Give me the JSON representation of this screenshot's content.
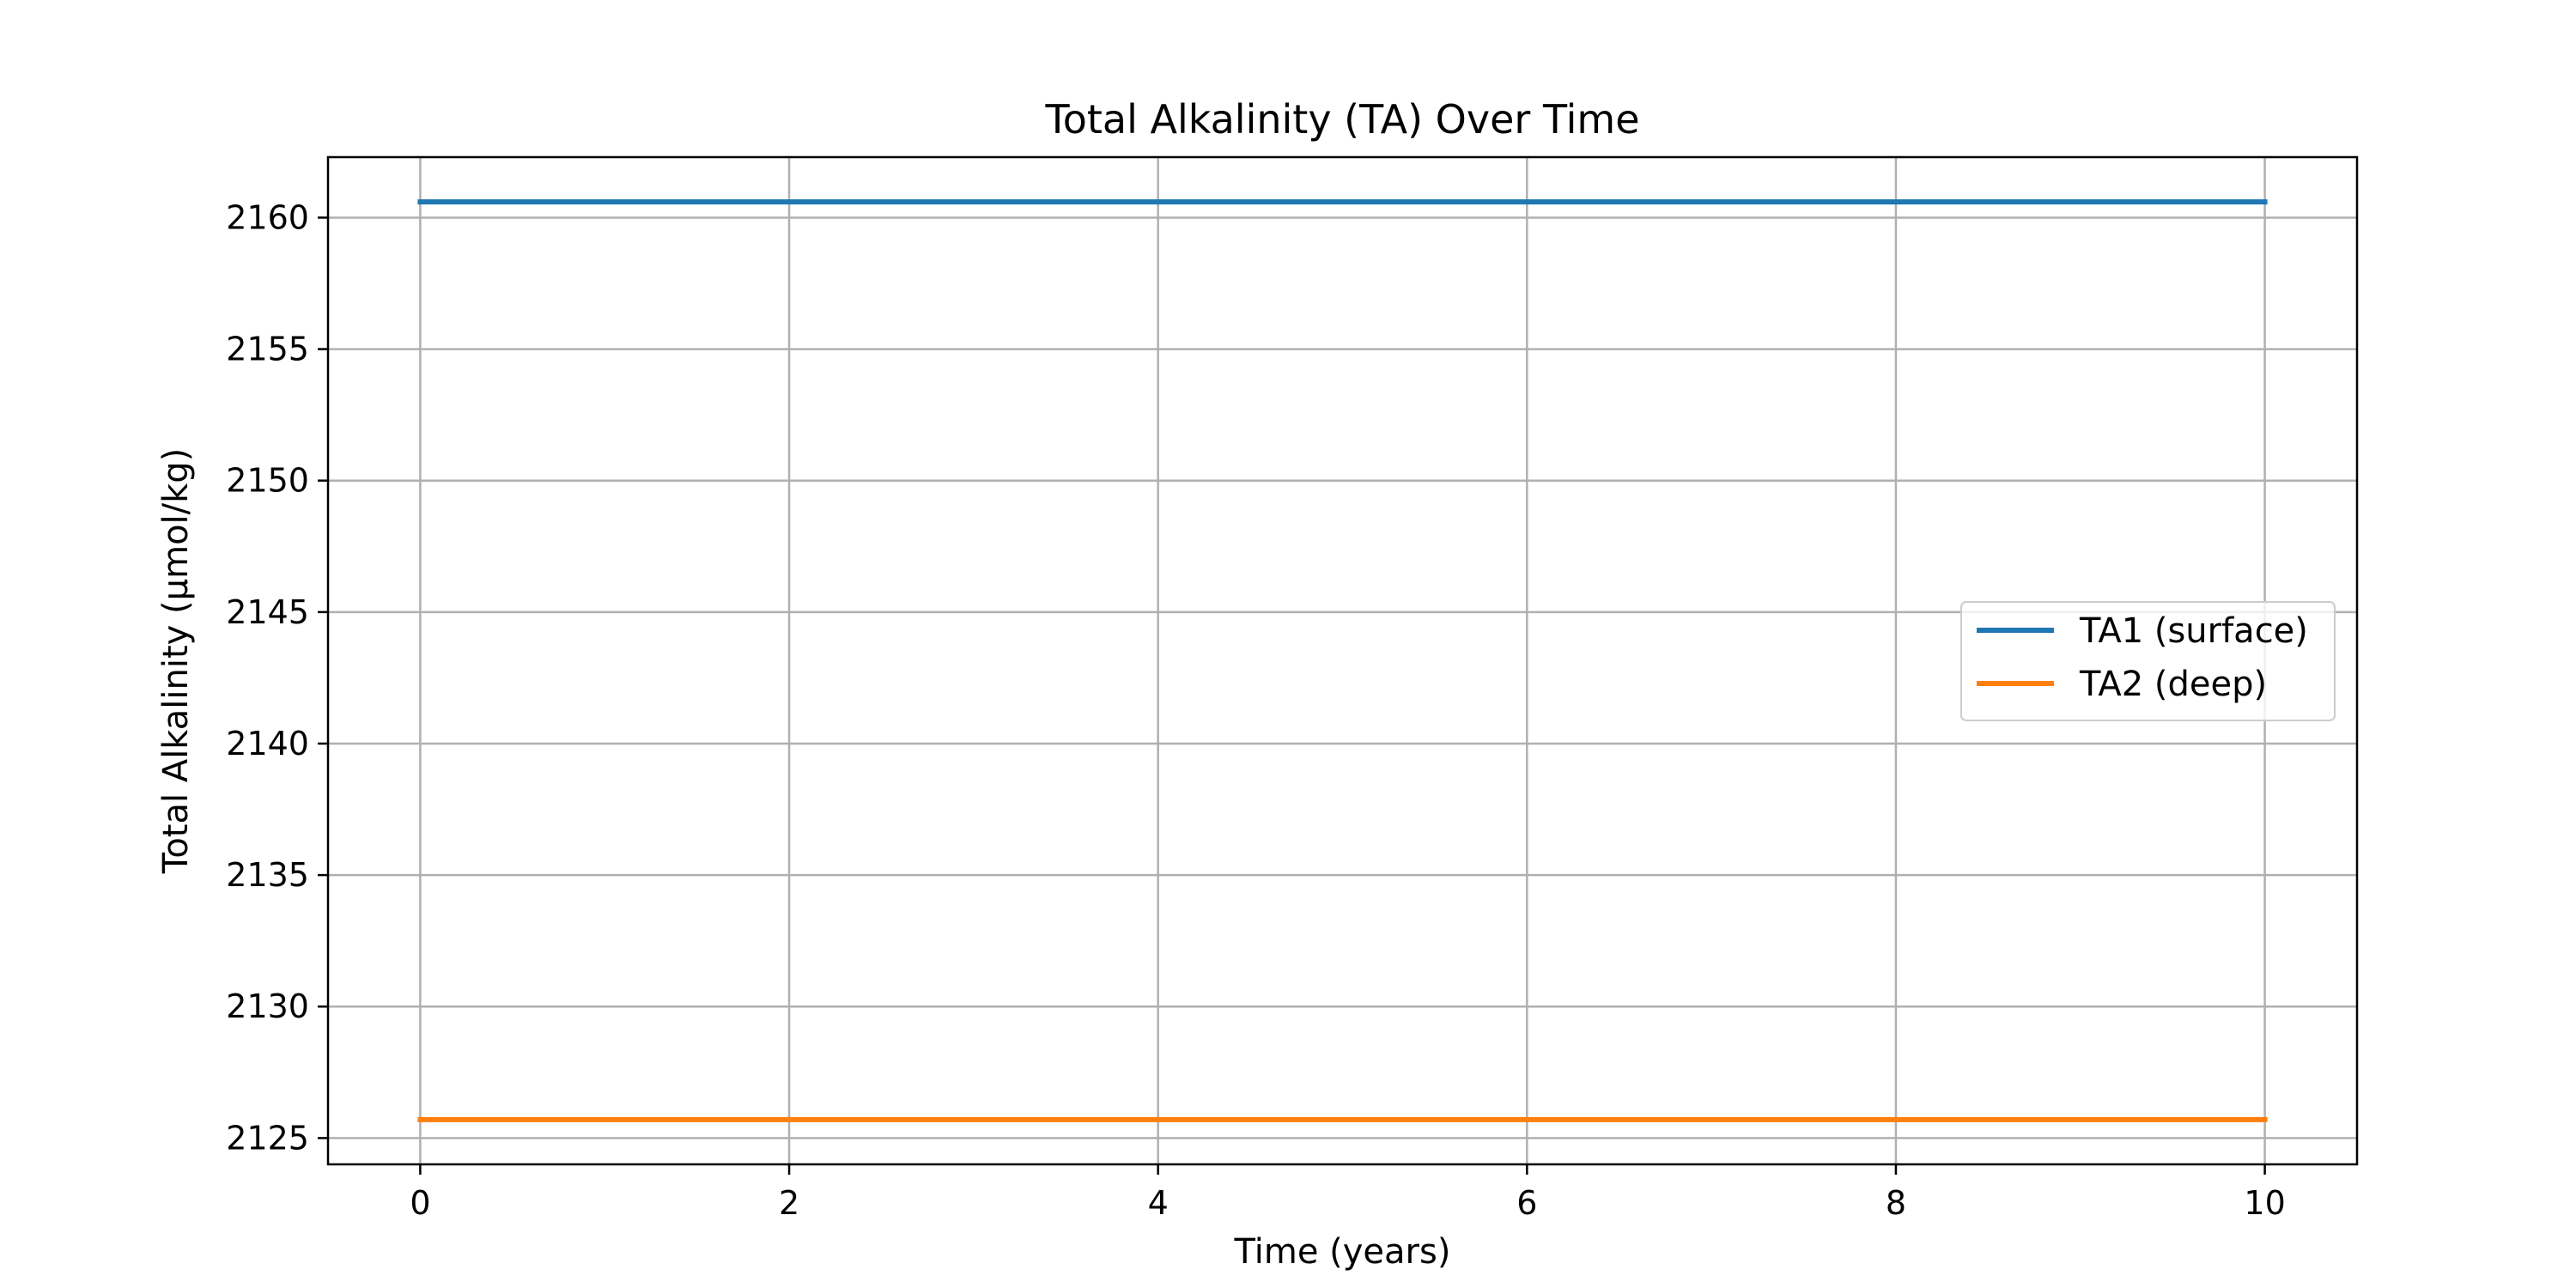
{
  "chart_data": {
    "type": "line",
    "title": "Total Alkalinity (TA) Over Time",
    "xlabel": "Time (years)",
    "ylabel": "Total Alkalinity (μmol/kg)",
    "xlim": [
      -0.5,
      10.5
    ],
    "ylim": [
      2124,
      2162.3
    ],
    "xticks": [
      0,
      2,
      4,
      6,
      8,
      10
    ],
    "xtick_labels": [
      "0",
      "2",
      "4",
      "6",
      "8",
      "10"
    ],
    "yticks": [
      2125,
      2130,
      2135,
      2140,
      2145,
      2150,
      2155,
      2160
    ],
    "ytick_labels": [
      "2125",
      "2130",
      "2135",
      "2140",
      "2145",
      "2150",
      "2155",
      "2160"
    ],
    "grid": true,
    "legend_position": "center-right",
    "series": [
      {
        "name": "TA1 (surface)",
        "color": "#1f77b4",
        "x": [
          0,
          10
        ],
        "y": [
          2160.6,
          2160.6
        ]
      },
      {
        "name": "TA2 (deep)",
        "color": "#ff7f0e",
        "x": [
          0,
          10
        ],
        "y": [
          2125.7,
          2125.7
        ]
      }
    ]
  }
}
